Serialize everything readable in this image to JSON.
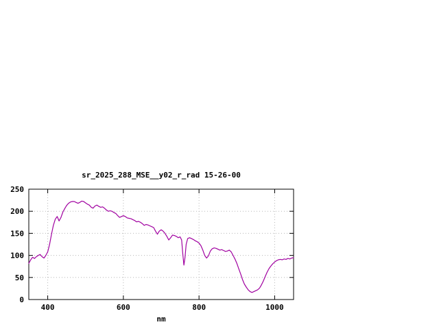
{
  "chart": {
    "title": "sr_2025_288_MSE__y02_r_rad 15-26-00",
    "xlabel": "nm"
  },
  "chart_data": {
    "type": "line",
    "title": "sr_2025_288_MSE__y02_r_rad 15-26-00",
    "xlabel": "nm",
    "ylabel": "",
    "xlim": [
      350,
      1050
    ],
    "ylim": [
      0,
      250
    ],
    "xticks": [
      400,
      600,
      800,
      1000
    ],
    "yticks": [
      0,
      50,
      100,
      150,
      200,
      250
    ],
    "grid": true,
    "legend": "none",
    "line_color": "#a000a0",
    "grid_color": "#b5b5b5",
    "axis_color": "#000000",
    "x": [
      350,
      355,
      360,
      365,
      370,
      375,
      380,
      385,
      390,
      395,
      400,
      405,
      410,
      415,
      420,
      425,
      430,
      435,
      440,
      445,
      450,
      455,
      460,
      465,
      470,
      475,
      480,
      485,
      490,
      495,
      500,
      505,
      510,
      515,
      520,
      525,
      530,
      535,
      540,
      545,
      550,
      555,
      560,
      565,
      570,
      575,
      580,
      585,
      590,
      595,
      600,
      605,
      610,
      615,
      620,
      625,
      630,
      635,
      640,
      645,
      650,
      655,
      660,
      665,
      670,
      675,
      680,
      685,
      690,
      695,
      700,
      705,
      710,
      715,
      720,
      725,
      730,
      735,
      740,
      745,
      750,
      754,
      757,
      760,
      763,
      766,
      770,
      775,
      780,
      785,
      790,
      795,
      800,
      805,
      810,
      815,
      820,
      825,
      830,
      835,
      840,
      845,
      850,
      855,
      860,
      865,
      870,
      875,
      880,
      885,
      890,
      895,
      900,
      905,
      910,
      915,
      920,
      925,
      930,
      935,
      940,
      945,
      950,
      955,
      960,
      965,
      970,
      975,
      980,
      985,
      990,
      995,
      1000,
      1005,
      1010,
      1015,
      1020,
      1025,
      1030,
      1035,
      1040,
      1045,
      1050
    ],
    "y": [
      82,
      90,
      96,
      93,
      97,
      100,
      102,
      97,
      94,
      100,
      108,
      125,
      148,
      168,
      182,
      188,
      178,
      186,
      198,
      206,
      213,
      218,
      221,
      222,
      222,
      220,
      218,
      220,
      223,
      222,
      219,
      216,
      214,
      209,
      207,
      212,
      214,
      211,
      209,
      210,
      207,
      203,
      200,
      201,
      200,
      197,
      195,
      190,
      186,
      188,
      190,
      188,
      185,
      184,
      183,
      181,
      179,
      176,
      177,
      175,
      172,
      168,
      170,
      169,
      167,
      165,
      163,
      155,
      148,
      155,
      158,
      155,
      150,
      143,
      135,
      140,
      146,
      145,
      143,
      140,
      142,
      135,
      105,
      78,
      95,
      125,
      138,
      140,
      138,
      136,
      133,
      131,
      128,
      122,
      112,
      100,
      94,
      99,
      110,
      115,
      117,
      116,
      114,
      112,
      113,
      111,
      109,
      110,
      112,
      108,
      100,
      92,
      82,
      70,
      58,
      45,
      35,
      28,
      22,
      18,
      16,
      18,
      20,
      22,
      26,
      33,
      42,
      52,
      62,
      70,
      76,
      81,
      85,
      88,
      90,
      91,
      90,
      92,
      91,
      93,
      92,
      94,
      95
    ]
  }
}
